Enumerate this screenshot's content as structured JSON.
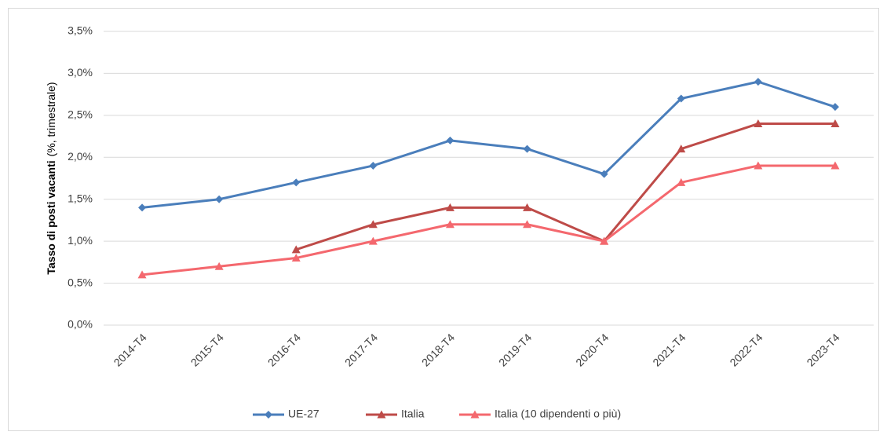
{
  "chart_data": {
    "type": "line",
    "ylabel": "Tasso di posti vacanti",
    "ylabel_note": "(%, trimestrale)",
    "categories": [
      "2014-T4",
      "2015-T4",
      "2016-T4",
      "2017-T4",
      "2018-T4",
      "2019-T4",
      "2020-T4",
      "2021-T4",
      "2022-T4",
      "2023-T4"
    ],
    "series": [
      {
        "name": "UE-27",
        "color": "#4a7ebb",
        "marker": "diamond",
        "values": [
          1.4,
          1.5,
          1.7,
          1.9,
          2.2,
          2.1,
          1.8,
          2.7,
          2.9,
          2.6
        ]
      },
      {
        "name": "Italia",
        "color": "#be4b48",
        "marker": "triangle",
        "values": [
          null,
          null,
          0.9,
          1.2,
          1.4,
          1.4,
          1.0,
          2.1,
          2.4,
          2.4
        ]
      },
      {
        "name": "Italia (10 dipendenti o più)",
        "color": "#f4686e",
        "marker": "triangle",
        "values": [
          0.6,
          0.7,
          0.8,
          1.0,
          1.2,
          1.2,
          1.0,
          1.7,
          1.9,
          1.9
        ]
      }
    ],
    "ylim": [
      0,
      3.5
    ],
    "yticks": [
      {
        "value": 0,
        "label": "0,0%"
      },
      {
        "value": 0.5,
        "label": "0,5%"
      },
      {
        "value": 1,
        "label": "1,0%"
      },
      {
        "value": 1.5,
        "label": "1,5%"
      },
      {
        "value": 2,
        "label": "2,0%"
      },
      {
        "value": 2.5,
        "label": "2,5%"
      },
      {
        "value": 3,
        "label": "3,0%"
      },
      {
        "value": 3.5,
        "label": "3,5%"
      }
    ],
    "grid": true,
    "legend": "bottom"
  }
}
